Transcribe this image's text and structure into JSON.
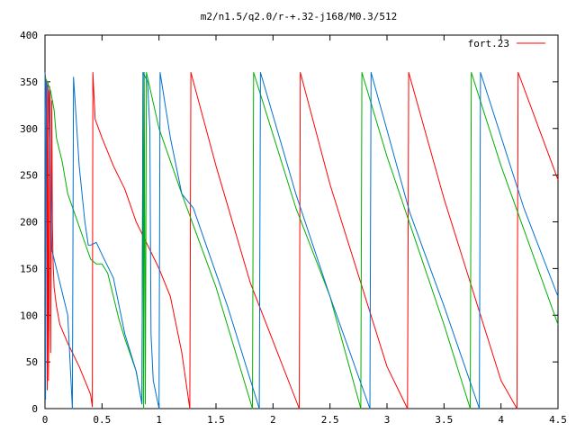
{
  "chart_data": {
    "type": "line",
    "title": "m2/n1.5/q2.0/r-+.32-j168/M0.3/512",
    "xlabel": "",
    "ylabel": "",
    "xlim": [
      0,
      4.5
    ],
    "ylim": [
      0,
      400
    ],
    "x_ticks": [
      0,
      0.5,
      1,
      1.5,
      2,
      2.5,
      3,
      3.5,
      4,
      4.5
    ],
    "x_tick_labels": [
      "0",
      "0.5",
      "1",
      "1.5",
      "2",
      "2.5",
      "3",
      "3.5",
      "4",
      "4.5"
    ],
    "y_ticks": [
      0,
      50,
      100,
      150,
      200,
      250,
      300,
      350,
      400
    ],
    "y_tick_labels": [
      "0",
      "50",
      "100",
      "150",
      "200",
      "250",
      "300",
      "350",
      "400"
    ],
    "grid": false,
    "legend_position": "top-right",
    "series": [
      {
        "name": "fort.23",
        "color": "#ff0000",
        "points": [
          [
            0.0,
            360
          ],
          [
            0.005,
            355
          ],
          [
            0.01,
            320
          ],
          [
            0.015,
            345
          ],
          [
            0.02,
            20
          ],
          [
            0.025,
            350
          ],
          [
            0.03,
            30
          ],
          [
            0.035,
            90
          ],
          [
            0.04,
            345
          ],
          [
            0.045,
            335
          ],
          [
            0.05,
            60
          ],
          [
            0.06,
            330
          ],
          [
            0.065,
            200
          ],
          [
            0.07,
            160
          ],
          [
            0.08,
            130
          ],
          [
            0.1,
            110
          ],
          [
            0.13,
            90
          ],
          [
            0.2,
            70
          ],
          [
            0.3,
            45
          ],
          [
            0.4,
            15
          ],
          [
            0.415,
            2
          ],
          [
            0.42,
            360
          ],
          [
            0.44,
            310
          ],
          [
            0.5,
            290
          ],
          [
            0.6,
            260
          ],
          [
            0.7,
            235
          ],
          [
            0.8,
            200
          ],
          [
            0.9,
            175
          ],
          [
            1.0,
            150
          ],
          [
            1.1,
            120
          ],
          [
            1.2,
            60
          ],
          [
            1.27,
            0
          ],
          [
            1.28,
            360
          ],
          [
            1.5,
            260
          ],
          [
            1.8,
            135
          ],
          [
            2.23,
            0
          ],
          [
            2.24,
            360
          ],
          [
            2.5,
            240
          ],
          [
            3.0,
            45
          ],
          [
            3.18,
            0
          ],
          [
            3.19,
            360
          ],
          [
            3.5,
            225
          ],
          [
            4.0,
            30
          ],
          [
            4.14,
            0
          ],
          [
            4.15,
            360
          ],
          [
            4.5,
            245
          ]
        ]
      },
      {
        "name": "",
        "color": "#00b000",
        "points": [
          [
            0.0,
            355
          ],
          [
            0.02,
            350
          ],
          [
            0.05,
            340
          ],
          [
            0.08,
            320
          ],
          [
            0.1,
            290
          ],
          [
            0.15,
            265
          ],
          [
            0.2,
            230
          ],
          [
            0.3,
            195
          ],
          [
            0.4,
            160
          ],
          [
            0.45,
            155
          ],
          [
            0.5,
            155
          ],
          [
            0.55,
            145
          ],
          [
            0.6,
            120
          ],
          [
            0.65,
            95
          ],
          [
            0.7,
            75
          ],
          [
            0.8,
            40
          ],
          [
            0.85,
            5
          ],
          [
            0.86,
            360
          ],
          [
            0.865,
            0
          ],
          [
            0.87,
            360
          ],
          [
            0.88,
            5
          ],
          [
            0.89,
            360
          ],
          [
            1.0,
            300
          ],
          [
            1.2,
            230
          ],
          [
            1.5,
            130
          ],
          [
            1.82,
            0
          ],
          [
            1.83,
            360
          ],
          [
            2.2,
            215
          ],
          [
            2.5,
            120
          ],
          [
            2.77,
            0
          ],
          [
            2.78,
            360
          ],
          [
            3.0,
            270
          ],
          [
            3.5,
            90
          ],
          [
            3.73,
            0
          ],
          [
            3.74,
            360
          ],
          [
            4.0,
            260
          ],
          [
            4.5,
            90
          ]
        ]
      },
      {
        "name": "",
        "color": "#0070d0",
        "points": [
          [
            0.0,
            360
          ],
          [
            0.005,
            10
          ],
          [
            0.01,
            350
          ],
          [
            0.02,
            345
          ],
          [
            0.03,
            340
          ],
          [
            0.06,
            170
          ],
          [
            0.1,
            150
          ],
          [
            0.2,
            100
          ],
          [
            0.24,
            0
          ],
          [
            0.25,
            355
          ],
          [
            0.3,
            260
          ],
          [
            0.35,
            200
          ],
          [
            0.38,
            175
          ],
          [
            0.4,
            175
          ],
          [
            0.45,
            178
          ],
          [
            0.5,
            165
          ],
          [
            0.6,
            140
          ],
          [
            0.7,
            80
          ],
          [
            0.75,
            60
          ],
          [
            0.8,
            40
          ],
          [
            0.85,
            5
          ],
          [
            0.86,
            360
          ],
          [
            0.9,
            350
          ],
          [
            0.92,
            300
          ],
          [
            0.93,
            80
          ],
          [
            0.95,
            30
          ],
          [
            1.0,
            0
          ],
          [
            1.01,
            360
          ],
          [
            1.1,
            290
          ],
          [
            1.2,
            230
          ],
          [
            1.3,
            215
          ],
          [
            1.4,
            180
          ],
          [
            1.6,
            110
          ],
          [
            1.88,
            0
          ],
          [
            1.89,
            360
          ],
          [
            2.2,
            230
          ],
          [
            2.5,
            120
          ],
          [
            2.85,
            0
          ],
          [
            2.86,
            360
          ],
          [
            3.2,
            210
          ],
          [
            3.5,
            110
          ],
          [
            3.81,
            0
          ],
          [
            3.82,
            360
          ],
          [
            4.2,
            215
          ],
          [
            4.5,
            120
          ]
        ]
      }
    ]
  }
}
